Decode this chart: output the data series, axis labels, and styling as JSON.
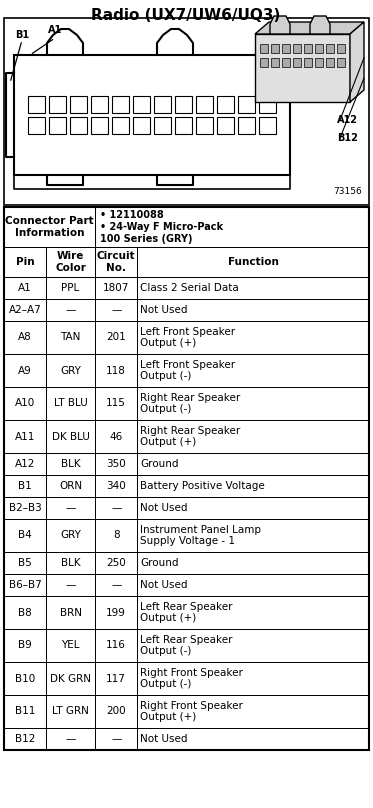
{
  "title": "Radio (UX7/UW6/UQ3)",
  "connector_info_label": "Connector Part\nInformation",
  "connector_bullets": [
    "12110088",
    "24-Way F Micro-Pack\n100 Series (GRY)"
  ],
  "part_number": "73156",
  "col_headers": [
    "Pin",
    "Wire\nColor",
    "Circuit\nNo.",
    "Function"
  ],
  "rows": [
    [
      "A1",
      "PPL",
      "1807",
      "Class 2 Serial Data"
    ],
    [
      "A2–A7",
      "—",
      "—",
      "Not Used"
    ],
    [
      "A8",
      "TAN",
      "201",
      "Left Front Speaker\nOutput (+)"
    ],
    [
      "A9",
      "GRY",
      "118",
      "Left Front Speaker\nOutput (-)"
    ],
    [
      "A10",
      "LT BLU",
      "115",
      "Right Rear Speaker\nOutput (-)"
    ],
    [
      "A11",
      "DK BLU",
      "46",
      "Right Rear Speaker\nOutput (+)"
    ],
    [
      "A12",
      "BLK",
      "350",
      "Ground"
    ],
    [
      "B1",
      "ORN",
      "340",
      "Battery Positive Voltage"
    ],
    [
      "B2–B3",
      "—",
      "—",
      "Not Used"
    ],
    [
      "B4",
      "GRY",
      "8",
      "Instrument Panel Lamp\nSupply Voltage - 1"
    ],
    [
      "B5",
      "BLK",
      "250",
      "Ground"
    ],
    [
      "B6–B7",
      "—",
      "—",
      "Not Used"
    ],
    [
      "B8",
      "BRN",
      "199",
      "Left Rear Speaker\nOutput (+)"
    ],
    [
      "B9",
      "YEL",
      "116",
      "Left Rear Speaker\nOutput (-)"
    ],
    [
      "B10",
      "DK GRN",
      "117",
      "Right Front Speaker\nOutput (-)"
    ],
    [
      "B11",
      "LT GRN",
      "200",
      "Right Front Speaker\nOutput (+)"
    ],
    [
      "B12",
      "—",
      "—",
      "Not Used"
    ]
  ],
  "bg_color": "#ffffff",
  "text_color": "#000000",
  "fig_width": 3.73,
  "fig_height": 8.08
}
